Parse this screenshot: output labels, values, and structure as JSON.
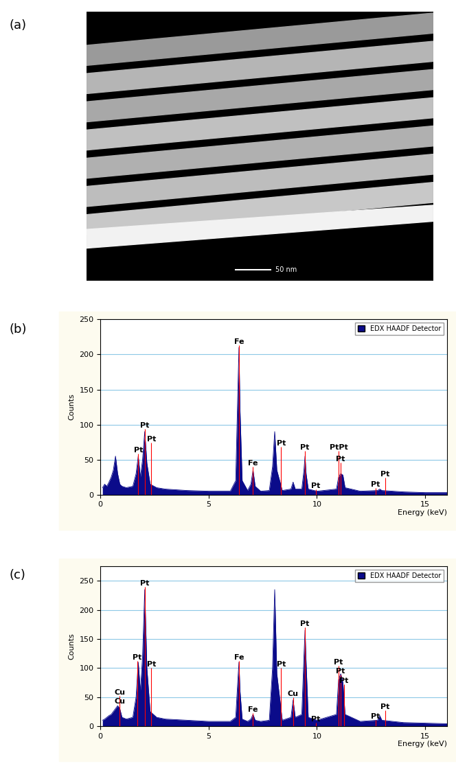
{
  "image": {
    "panel_label": "(a)",
    "scale_bar": "50 nm"
  },
  "chart_data": [
    {
      "type": "area",
      "panel_label": "(b)",
      "y_label": "Counts",
      "x_label": "Energy (keV)",
      "x": [
        0.1,
        0.2,
        0.3,
        0.4,
        0.5,
        0.6,
        0.7,
        0.8,
        0.9,
        1.0,
        1.2,
        1.5,
        1.65,
        1.75,
        1.85,
        1.95,
        2.05,
        2.15,
        2.3,
        2.6,
        3.0,
        4.0,
        5.0,
        6.0,
        6.25,
        6.35,
        6.4,
        6.45,
        6.55,
        6.8,
        6.95,
        7.05,
        7.15,
        7.4,
        7.8,
        7.95,
        8.05,
        8.15,
        8.4,
        8.8,
        8.9,
        9.0,
        9.3,
        9.4,
        9.45,
        9.5,
        9.6,
        10.0,
        10.9,
        11.0,
        11.1,
        11.2,
        11.3,
        12.0,
        12.8,
        12.9,
        13.0,
        14.0,
        15.0,
        16.0
      ],
      "series": [
        {
          "name": "EDX HAADF Detector",
          "color": "#0b0b8a",
          "values": [
            10,
            15,
            12,
            18,
            25,
            35,
            55,
            30,
            15,
            12,
            10,
            12,
            30,
            55,
            25,
            50,
            90,
            45,
            15,
            10,
            8,
            6,
            5,
            5,
            20,
            150,
            210,
            120,
            20,
            6,
            15,
            35,
            12,
            5,
            6,
            40,
            90,
            35,
            6,
            8,
            18,
            8,
            8,
            35,
            55,
            30,
            8,
            5,
            8,
            25,
            30,
            28,
            10,
            5,
            6,
            8,
            6,
            4,
            3,
            3
          ]
        }
      ],
      "xlim": [
        0,
        16
      ],
      "xticks": [
        0,
        5,
        10,
        15
      ],
      "ylim": [
        0,
        250
      ],
      "yticks": [
        0,
        50,
        100,
        150,
        200,
        250
      ],
      "grid": true,
      "legend": "upper right",
      "annotations": [
        {
          "x": 1.75,
          "y": 58,
          "text": "Pt"
        },
        {
          "x": 2.05,
          "y": 94,
          "text": "Pt"
        },
        {
          "x": 2.35,
          "y": 74,
          "text": "Pt"
        },
        {
          "x": 6.4,
          "y": 213,
          "text": "Fe"
        },
        {
          "x": 7.05,
          "y": 40,
          "text": "Fe"
        },
        {
          "x": 8.35,
          "y": 68,
          "text": "Pt"
        },
        {
          "x": 9.45,
          "y": 62,
          "text": "Pt"
        },
        {
          "x": 9.95,
          "y": 8,
          "text": "Pt"
        },
        {
          "x": 11.0,
          "y": 62,
          "text": "PtPt"
        },
        {
          "x": 11.1,
          "y": 46,
          "text": "Pt"
        },
        {
          "x": 12.7,
          "y": 10,
          "text": "Pt"
        },
        {
          "x": 13.15,
          "y": 24,
          "text": "Pt"
        }
      ]
    },
    {
      "type": "area",
      "panel_label": "(c)",
      "y_label": "Counts",
      "x_label": "Energy (keV)",
      "x": [
        0.1,
        0.2,
        0.3,
        0.4,
        0.5,
        0.6,
        0.7,
        0.8,
        0.9,
        1.0,
        1.2,
        1.5,
        1.65,
        1.75,
        1.85,
        1.95,
        2.05,
        2.15,
        2.3,
        2.6,
        3.0,
        4.0,
        5.0,
        6.0,
        6.25,
        6.35,
        6.4,
        6.45,
        6.55,
        6.8,
        6.95,
        7.05,
        7.15,
        7.4,
        7.8,
        7.95,
        8.05,
        8.15,
        8.4,
        8.8,
        8.9,
        9.0,
        9.3,
        9.4,
        9.45,
        9.5,
        9.6,
        10.0,
        10.9,
        11.0,
        11.1,
        11.2,
        11.3,
        12.0,
        12.8,
        12.9,
        13.0,
        14.0,
        15.0,
        16.0
      ],
      "series": [
        {
          "name": "EDX HAADF Detector",
          "color": "#0b0b8a",
          "values": [
            10,
            12,
            15,
            18,
            20,
            25,
            30,
            35,
            30,
            15,
            12,
            15,
            50,
            110,
            60,
            120,
            235,
            100,
            25,
            15,
            12,
            10,
            8,
            8,
            15,
            80,
            110,
            60,
            12,
            8,
            12,
            20,
            10,
            8,
            10,
            100,
            235,
            90,
            10,
            15,
            45,
            15,
            20,
            120,
            165,
            110,
            15,
            10,
            20,
            80,
            90,
            75,
            20,
            8,
            10,
            18,
            10,
            6,
            5,
            4
          ]
        }
      ],
      "xlim": [
        0,
        16
      ],
      "xticks": [
        0,
        5,
        10,
        15
      ],
      "ylim": [
        0,
        275
      ],
      "yticks": [
        0,
        50,
        100,
        150,
        200,
        250
      ],
      "grid": true,
      "legend": "upper right",
      "annotations": [
        {
          "x": 0.9,
          "y": 52,
          "text": "Cu"
        },
        {
          "x": 0.9,
          "y": 36,
          "text": "Cu"
        },
        {
          "x": 1.7,
          "y": 112,
          "text": "Pt"
        },
        {
          "x": 2.05,
          "y": 240,
          "text": "Pt"
        },
        {
          "x": 2.35,
          "y": 100,
          "text": "Pt"
        },
        {
          "x": 6.4,
          "y": 112,
          "text": "Fe"
        },
        {
          "x": 7.05,
          "y": 22,
          "text": "Fe"
        },
        {
          "x": 8.35,
          "y": 100,
          "text": "Pt"
        },
        {
          "x": 8.9,
          "y": 50,
          "text": "Cu"
        },
        {
          "x": 9.45,
          "y": 170,
          "text": "Pt"
        },
        {
          "x": 9.95,
          "y": 6,
          "text": "Pt"
        },
        {
          "x": 11.0,
          "y": 104,
          "text": "Pt"
        },
        {
          "x": 11.1,
          "y": 88,
          "text": "Pt"
        },
        {
          "x": 11.25,
          "y": 72,
          "text": "Pt"
        },
        {
          "x": 12.7,
          "y": 10,
          "text": "Pt"
        },
        {
          "x": 13.15,
          "y": 27,
          "text": "Pt"
        }
      ]
    }
  ]
}
